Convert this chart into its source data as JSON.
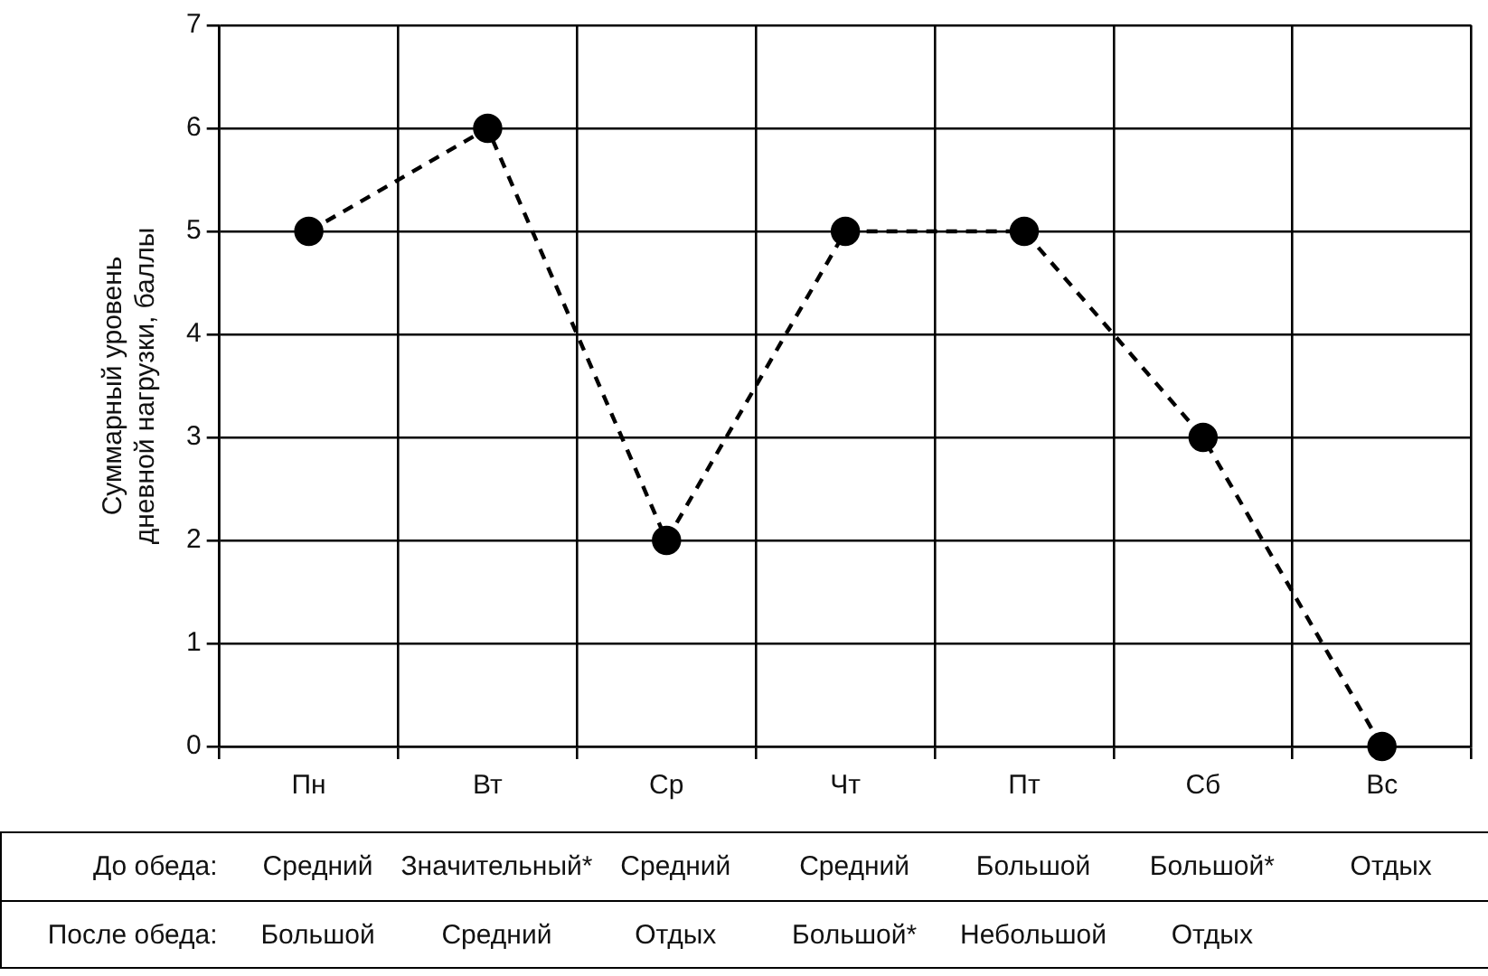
{
  "chart_data": {
    "type": "line",
    "ylabel": "Суммарный уровень дневной нагрузки, баллы",
    "categories": [
      "Пн",
      "Вт",
      "Ср",
      "Чт",
      "Пт",
      "Сб",
      "Вс"
    ],
    "series": [
      {
        "color": "#000000",
        "values": [
          5,
          6,
          2,
          5,
          5,
          3,
          0
        ]
      }
    ],
    "ylim": [
      0,
      7
    ],
    "yticks": [
      0,
      1,
      2,
      3,
      4,
      5,
      6,
      7
    ],
    "grid": true,
    "legend": false,
    "marker": "circle",
    "line_style": "dashed",
    "annotations": [
      "До обеда:",
      "Средний",
      "Значительный*",
      "Средний",
      "Средний",
      "Большой",
      "Большой*",
      "Отдых",
      "После обеда:",
      "Большой",
      "Средний",
      "Отдых",
      "Большой*",
      "Небольшой",
      "Отдых"
    ]
  }
}
